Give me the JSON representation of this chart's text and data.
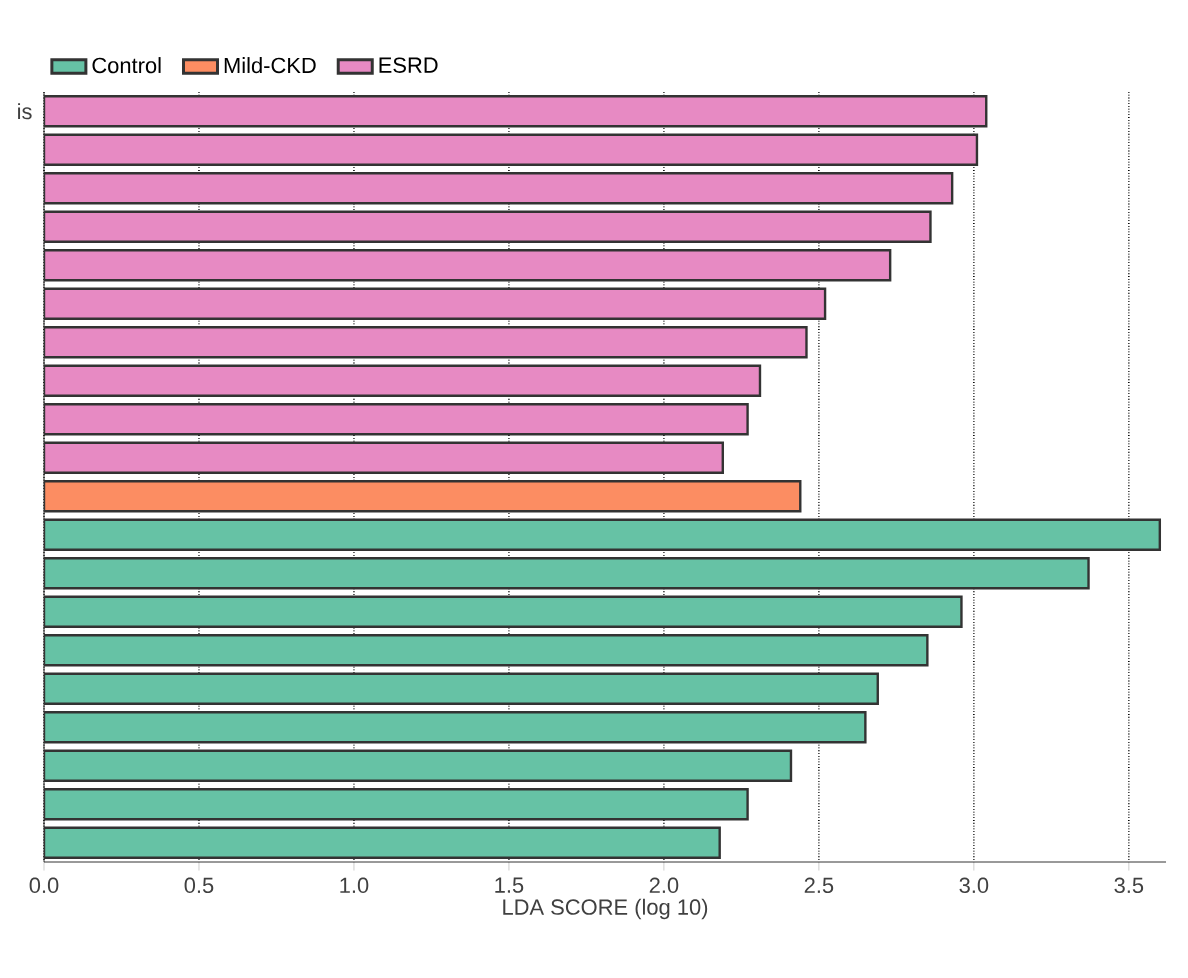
{
  "chart_data": {
    "type": "bar",
    "orientation": "horizontal",
    "xlabel": "LDA SCORE (log 10)",
    "categories": [
      "is",
      null,
      null,
      null,
      null,
      null,
      null,
      null,
      null,
      null,
      null,
      null,
      null,
      null,
      null,
      null,
      null,
      null,
      null,
      null
    ],
    "series": [
      {
        "name": "Control",
        "color": "#66c2a5",
        "values": [
          null,
          null,
          null,
          null,
          null,
          null,
          null,
          null,
          null,
          null,
          null,
          3.6,
          3.37,
          2.96,
          2.85,
          2.69,
          2.65,
          2.41,
          2.27,
          2.18
        ]
      },
      {
        "name": "Mild-CKD",
        "color": "#fc8d62",
        "values": [
          null,
          null,
          null,
          null,
          null,
          null,
          null,
          null,
          null,
          null,
          2.44,
          null,
          null,
          null,
          null,
          null,
          null,
          null,
          null,
          null
        ]
      },
      {
        "name": "ESRD",
        "color": "#e78ac3",
        "values": [
          3.04,
          3.01,
          2.93,
          2.86,
          2.73,
          2.52,
          2.46,
          2.31,
          2.27,
          2.19,
          null,
          null,
          null,
          null,
          null,
          null,
          null,
          null,
          null,
          null
        ]
      }
    ],
    "xlim": [
      0,
      3.62
    ],
    "xticks": [
      {
        "value": 0,
        "label": "0.0"
      },
      {
        "value": 0.5,
        "label": "0.5"
      },
      {
        "value": 1,
        "label": "1.0"
      },
      {
        "value": 1.5,
        "label": "1.5"
      },
      {
        "value": 2,
        "label": "2.0"
      },
      {
        "value": 2.5,
        "label": "2.5"
      },
      {
        "value": 3,
        "label": "3.0"
      },
      {
        "value": 3.5,
        "label": "3.5"
      }
    ],
    "grid": "x",
    "legend": "top"
  }
}
